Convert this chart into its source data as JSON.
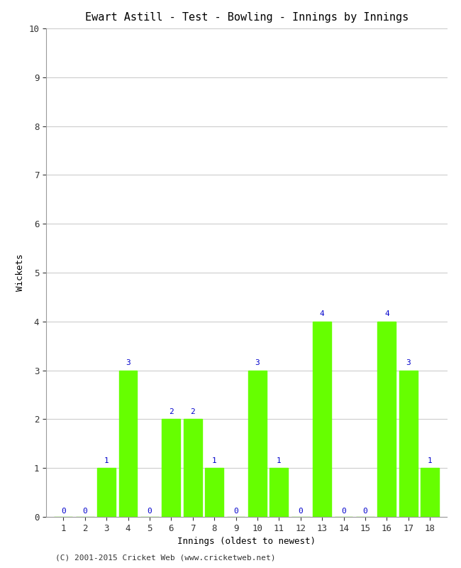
{
  "title": "Ewart Astill - Test - Bowling - Innings by Innings",
  "xlabel": "Innings (oldest to newest)",
  "ylabel": "Wickets",
  "innings": [
    1,
    2,
    3,
    4,
    5,
    6,
    7,
    8,
    9,
    10,
    11,
    12,
    13,
    14,
    15,
    16,
    17,
    18
  ],
  "wickets": [
    0,
    0,
    1,
    3,
    0,
    2,
    2,
    1,
    0,
    3,
    1,
    0,
    4,
    0,
    0,
    4,
    3,
    1
  ],
  "bar_color": "#66ff00",
  "bar_edge_color": "#66ff00",
  "label_color": "#0000cc",
  "ylim": [
    0,
    10
  ],
  "yticks": [
    0,
    1,
    2,
    3,
    4,
    5,
    6,
    7,
    8,
    9,
    10
  ],
  "background_color": "#ffffff",
  "grid_color": "#cccccc",
  "footer": "(C) 2001-2015 Cricket Web (www.cricketweb.net)",
  "title_fontsize": 11,
  "axis_label_fontsize": 9,
  "tick_fontsize": 9,
  "bar_label_fontsize": 8,
  "footer_fontsize": 8,
  "bar_width": 0.85
}
